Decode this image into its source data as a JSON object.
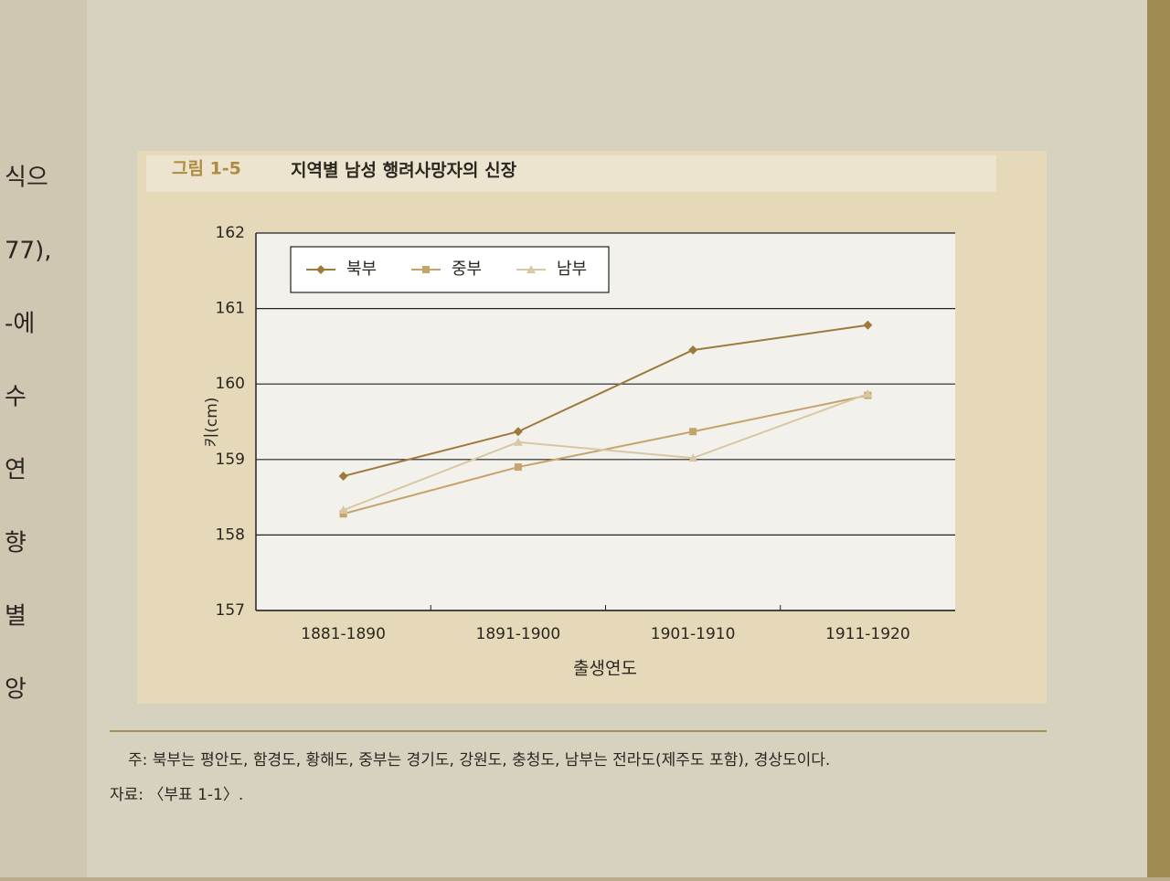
{
  "chart_data": {
    "type": "line",
    "figure_label": "그림 1-5",
    "title": "지역별 남성 행려사망자의 신장",
    "categories": [
      "1881-1890",
      "1891-1900",
      "1901-1910",
      "1911-1920"
    ],
    "series": [
      {
        "name": "북부",
        "color": "#9c7a3c",
        "marker": "diamond",
        "values": [
          158.78,
          159.37,
          160.45,
          160.78
        ]
      },
      {
        "name": "중부",
        "color": "#c4a46a",
        "marker": "square",
        "values": [
          158.28,
          158.9,
          159.37,
          159.85
        ]
      },
      {
        "name": "남부",
        "color": "#d8c7a4",
        "marker": "triangle",
        "values": [
          158.33,
          159.23,
          159.02,
          159.87
        ]
      }
    ],
    "ylim": [
      157,
      162
    ],
    "yticks": [
      157,
      158,
      159,
      160,
      161,
      162
    ],
    "ylabel": "키(cm)",
    "xlabel": "출생연도",
    "grid": true,
    "legend": "top-left",
    "note": "주: 북부는 평안도, 함경도, 황해도, 중부는 경기도, 강원도, 충청도, 남부는 전라도(제주도 포함), 경상도이다.",
    "source": "자료: 〈부표 1-1〉."
  },
  "margin_text": [
    "식으",
    "77),",
    "-에",
    "수",
    "연",
    "향",
    "별",
    "앙"
  ]
}
